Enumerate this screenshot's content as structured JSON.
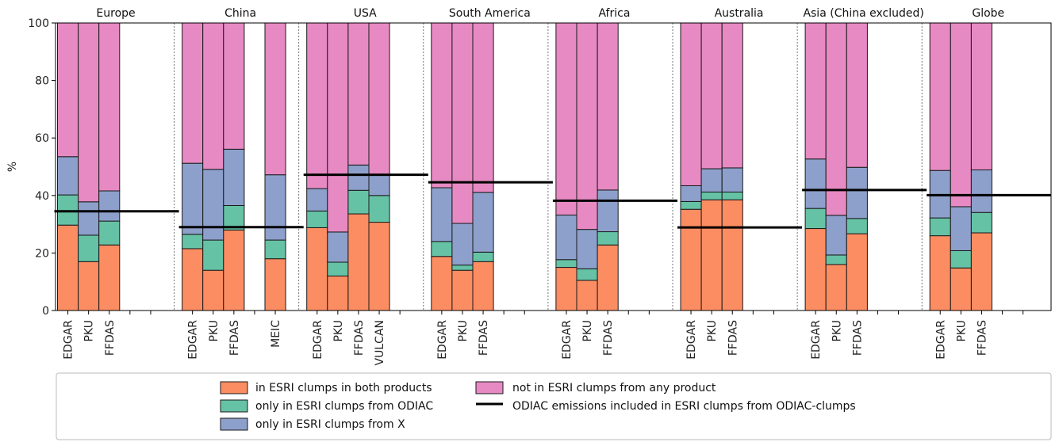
{
  "chart_data": {
    "type": "bar",
    "stacked": true,
    "ylabel": "%",
    "xlabel": "",
    "ylim": [
      0,
      100
    ],
    "yticks": [
      0,
      20,
      40,
      60,
      80,
      100
    ],
    "grid": false,
    "legend_placement": "bottom",
    "colors": {
      "both": "#fc8d62",
      "odiac": "#66c2a5",
      "x": "#8da0cb",
      "none": "#e78ac3",
      "line": "#000000"
    },
    "legend": [
      {
        "key": "both",
        "label": "in ESRI clumps in both products"
      },
      {
        "key": "odiac",
        "label": "only in ESRI clumps from ODIAC"
      },
      {
        "key": "x",
        "label": "only in ESRI clumps from X"
      },
      {
        "key": "none",
        "label": "not in ESRI clumps from any product"
      },
      {
        "key": "line",
        "label": "ODIAC emissions included in ESRI clumps from ODIAC-clumps"
      }
    ],
    "regions": [
      {
        "name": "Europe",
        "odiac_line": 34.5,
        "bars": [
          {
            "label": "EDGAR",
            "both": 29.7,
            "odiac": 10.5,
            "x": 13.3
          },
          {
            "label": "PKU",
            "both": 17.0,
            "odiac": 9.2,
            "x": 11.6
          },
          {
            "label": "FFDAS",
            "both": 22.8,
            "odiac": 8.3,
            "x": 10.5
          },
          {
            "label": "",
            "empty": true
          },
          {
            "label": "",
            "empty": true
          }
        ]
      },
      {
        "name": "China",
        "odiac_line": 29.0,
        "bars": [
          {
            "label": "EDGAR",
            "both": 21.5,
            "odiac": 5.0,
            "x": 24.7
          },
          {
            "label": "PKU",
            "both": 14.0,
            "odiac": 10.5,
            "x": 24.6
          },
          {
            "label": "FFDAS",
            "both": 28.0,
            "odiac": 8.5,
            "x": 19.6
          },
          {
            "label": "",
            "empty": true
          },
          {
            "label": "MEIC",
            "both": 18.0,
            "odiac": 6.5,
            "x": 22.7
          }
        ]
      },
      {
        "name": "USA",
        "odiac_line": 47.2,
        "bars": [
          {
            "label": "EDGAR",
            "both": 28.8,
            "odiac": 5.8,
            "x": 7.8
          },
          {
            "label": "PKU",
            "both": 12.0,
            "odiac": 4.8,
            "x": 10.5
          },
          {
            "label": "FFDAS",
            "both": 33.6,
            "odiac": 8.2,
            "x": 8.8
          },
          {
            "label": "VULCAN",
            "both": 30.7,
            "odiac": 9.3,
            "x": 7.0
          },
          {
            "label": "",
            "empty": true
          }
        ]
      },
      {
        "name": "South America",
        "odiac_line": 44.6,
        "bars": [
          {
            "label": "EDGAR",
            "both": 18.8,
            "odiac": 5.2,
            "x": 18.7
          },
          {
            "label": "PKU",
            "both": 14.0,
            "odiac": 1.8,
            "x": 14.5
          },
          {
            "label": "FFDAS",
            "both": 17.0,
            "odiac": 3.3,
            "x": 20.8
          },
          {
            "label": "",
            "empty": true
          },
          {
            "label": "",
            "empty": true
          }
        ]
      },
      {
        "name": "Africa",
        "odiac_line": 38.2,
        "bars": [
          {
            "label": "EDGAR",
            "both": 15.0,
            "odiac": 2.7,
            "x": 15.5
          },
          {
            "label": "PKU",
            "both": 10.5,
            "odiac": 4.0,
            "x": 13.7
          },
          {
            "label": "FFDAS",
            "both": 22.8,
            "odiac": 4.6,
            "x": 14.5
          },
          {
            "label": "",
            "empty": true
          },
          {
            "label": "",
            "empty": true
          }
        ]
      },
      {
        "name": "Australia",
        "odiac_line": 28.9,
        "bars": [
          {
            "label": "EDGAR",
            "both": 35.2,
            "odiac": 2.7,
            "x": 5.5
          },
          {
            "label": "PKU",
            "both": 38.5,
            "odiac": 2.7,
            "x": 8.1
          },
          {
            "label": "FFDAS",
            "both": 38.5,
            "odiac": 2.7,
            "x": 8.4
          },
          {
            "label": "",
            "empty": true
          },
          {
            "label": "",
            "empty": true
          }
        ]
      },
      {
        "name": "Asia (China excluded)",
        "odiac_line": 41.9,
        "bars": [
          {
            "label": "EDGAR",
            "both": 28.5,
            "odiac": 7.0,
            "x": 17.2
          },
          {
            "label": "PKU",
            "both": 16.0,
            "odiac": 3.3,
            "x": 13.8
          },
          {
            "label": "FFDAS",
            "both": 26.7,
            "odiac": 5.3,
            "x": 17.8
          },
          {
            "label": "",
            "empty": true
          },
          {
            "label": "",
            "empty": true
          }
        ]
      },
      {
        "name": "Globe",
        "odiac_line": 40.1,
        "bars": [
          {
            "label": "EDGAR",
            "both": 26.0,
            "odiac": 6.2,
            "x": 16.5
          },
          {
            "label": "PKU",
            "both": 14.8,
            "odiac": 6.0,
            "x": 15.3
          },
          {
            "label": "FFDAS",
            "both": 27.0,
            "odiac": 7.1,
            "x": 14.8
          },
          {
            "label": "",
            "empty": true
          },
          {
            "label": "",
            "empty": true
          }
        ]
      }
    ]
  }
}
